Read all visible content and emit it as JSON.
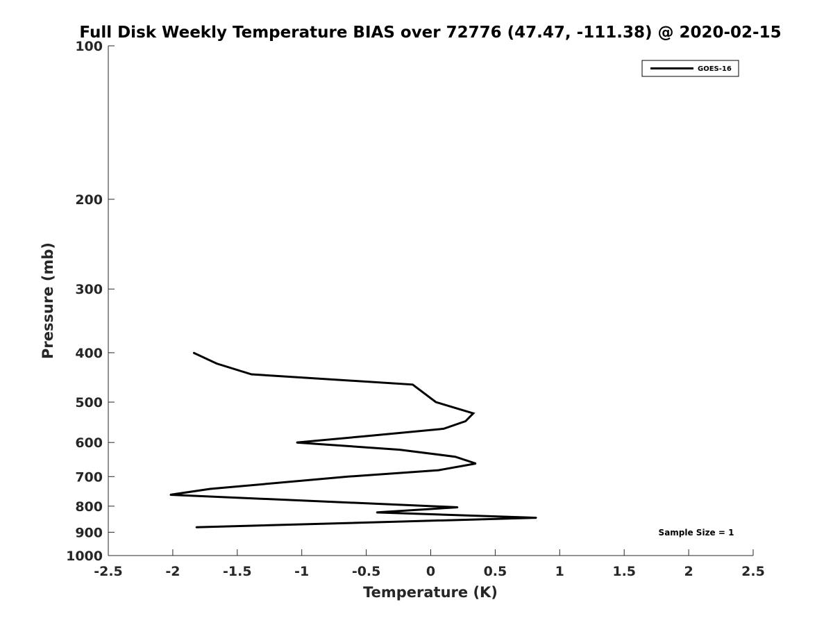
{
  "chart_data": {
    "type": "line",
    "title": "Full Disk Weekly Temperature BIAS over 72776 (47.47, -111.38) @ 2020-02-15",
    "xlabel": "Temperature (K)",
    "ylabel": "Pressure (mb)",
    "xlim": [
      -2.5,
      2.5
    ],
    "ylim": [
      100,
      1000
    ],
    "yscale": "log",
    "y_reversed": true,
    "x_ticks": [
      -2.5,
      -2,
      -1.5,
      -1,
      -0.5,
      0,
      0.5,
      1,
      1.5,
      2,
      2.5
    ],
    "x_tick_labels": [
      "-2.5",
      "-2",
      "-1.5",
      "-1",
      "-0.5",
      "0",
      "0.5",
      "1",
      "1.5",
      "2",
      "2.5"
    ],
    "y_ticks": [
      100,
      200,
      300,
      400,
      500,
      600,
      700,
      800,
      900,
      1000
    ],
    "y_tick_labels": [
      "100",
      "200",
      "300",
      "400",
      "500",
      "600",
      "700",
      "800",
      "900",
      "1000"
    ],
    "grid": false,
    "legend_position": "top-right",
    "series": [
      {
        "name": "GOES-16",
        "color": "#000000",
        "points": [
          {
            "x": -1.84,
            "y": 400
          },
          {
            "x": -1.66,
            "y": 420
          },
          {
            "x": -1.39,
            "y": 441
          },
          {
            "x": -0.14,
            "y": 462
          },
          {
            "x": 0.04,
            "y": 500
          },
          {
            "x": 0.33,
            "y": 526
          },
          {
            "x": 0.27,
            "y": 545
          },
          {
            "x": 0.1,
            "y": 564
          },
          {
            "x": -0.5,
            "y": 583
          },
          {
            "x": -1.04,
            "y": 600
          },
          {
            "x": -0.24,
            "y": 620
          },
          {
            "x": 0.19,
            "y": 640
          },
          {
            "x": 0.35,
            "y": 660
          },
          {
            "x": 0.06,
            "y": 680
          },
          {
            "x": -0.64,
            "y": 700
          },
          {
            "x": -1.71,
            "y": 740
          },
          {
            "x": -2.02,
            "y": 760
          },
          {
            "x": 0.21,
            "y": 804
          },
          {
            "x": -0.42,
            "y": 823
          },
          {
            "x": 0.82,
            "y": 843
          },
          {
            "x": -1.82,
            "y": 880
          }
        ]
      }
    ],
    "annotation": "Sample Size = 1"
  }
}
